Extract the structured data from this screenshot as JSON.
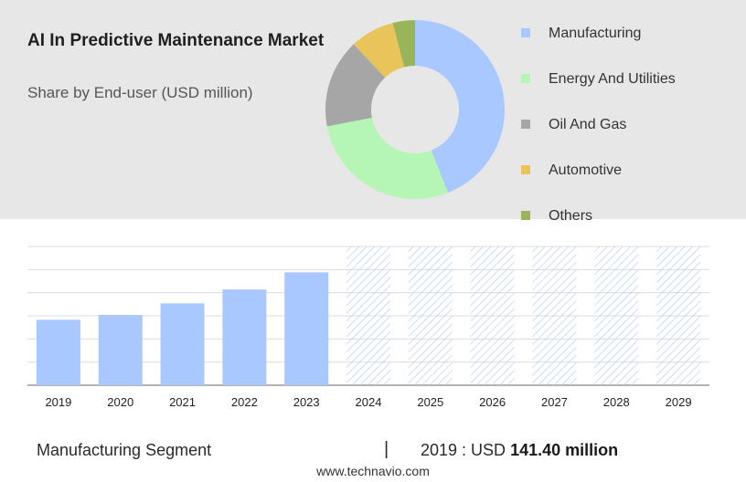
{
  "header": {
    "title": "AI In Predictive Maintenance Market",
    "subtitle": "Share by End-user (USD million)"
  },
  "colors": {
    "panel_bg": "#e7e7e7",
    "bar": "#a8c8ff",
    "hatch": "#b9cdf0",
    "grid": "#dcdcdc"
  },
  "chart_data": [
    {
      "type": "pie",
      "variant": "donut",
      "slices": [
        {
          "name": "Manufacturing",
          "value": 44,
          "color": "#a8c8ff"
        },
        {
          "name": "Energy And Utilities",
          "value": 28,
          "color": "#b5f5b5"
        },
        {
          "name": "Oil And Gas",
          "value": 16,
          "color": "#a6a6a6"
        },
        {
          "name": "Automotive",
          "value": 8,
          "color": "#e9c45b"
        },
        {
          "name": "Others",
          "value": 4,
          "color": "#98b55a"
        }
      ],
      "legend": "right"
    },
    {
      "type": "bar",
      "categories": [
        "2019",
        "2020",
        "2021",
        "2022",
        "2023",
        "2024",
        "2025",
        "2026",
        "2027",
        "2028",
        "2029"
      ],
      "values": [
        141.4,
        152,
        177,
        207,
        244,
        null,
        null,
        null,
        null,
        null,
        null
      ],
      "forecast_categories": [
        "2024",
        "2025",
        "2026",
        "2027",
        "2028",
        "2029"
      ],
      "ylim": [
        0,
        300
      ],
      "grid": true
    }
  ],
  "footer": {
    "segment_label": "Manufacturing Segment",
    "separator": "|",
    "year_prefix": "2019 : USD",
    "value_text": "141.40 million"
  },
  "source": "www.technavio.com"
}
